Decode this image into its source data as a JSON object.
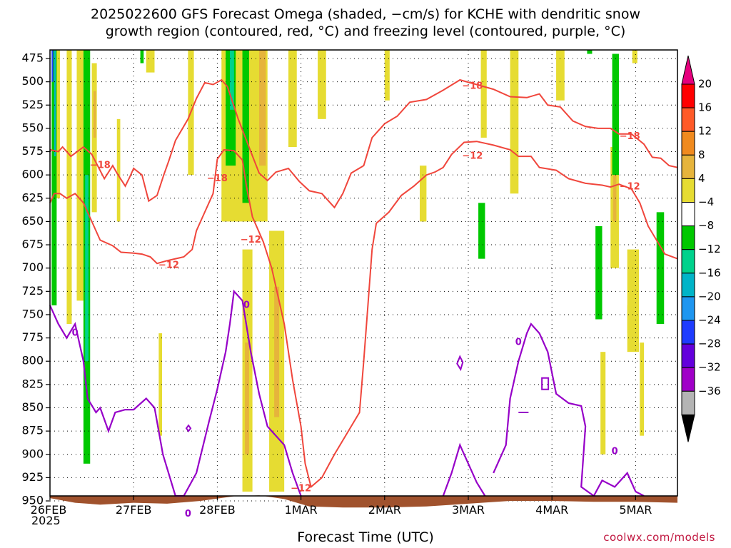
{
  "title": {
    "line1": "2025022600 GFS Forecast Omega (shaded, −cm/s) for KCHE with dendritic snow",
    "line2": "growth region (contoured, red, °C) and freezing level (contoured, purple, °C)"
  },
  "footer": {
    "xlabel": "Forecast Time (UTC)",
    "credit": "coolwx.com/models",
    "year": "2025"
  },
  "chart_data": {
    "type": "heatmap",
    "x_ticks": [
      {
        "date": "2025-02-26",
        "label": "26FEB"
      },
      {
        "date": "2025-02-27",
        "label": "27FEB"
      },
      {
        "date": "2025-02-28",
        "label": "28FEB"
      },
      {
        "date": "2025-03-01",
        "label": "1MAR"
      },
      {
        "date": "2025-03-02",
        "label": "2MAR"
      },
      {
        "date": "2025-03-03",
        "label": "3MAR"
      },
      {
        "date": "2025-03-04",
        "label": "4MAR"
      },
      {
        "date": "2025-03-05",
        "label": "5MAR"
      }
    ],
    "x_range_days": [
      0,
      7.5
    ],
    "y_ticks_hpa": [
      475,
      500,
      525,
      550,
      575,
      600,
      625,
      650,
      675,
      700,
      725,
      750,
      775,
      800,
      825,
      850,
      875,
      900,
      925,
      950
    ],
    "y_range_hpa": [
      455,
      970
    ],
    "grid": true,
    "colorbar": {
      "labels": [
        "20",
        "16",
        "12",
        "8",
        "4",
        "−4",
        "−8",
        "−12",
        "−16",
        "−20",
        "−24",
        "−28",
        "−32",
        "−36"
      ],
      "colors": [
        "#ff0000",
        "#ff5a28",
        "#f08a1e",
        "#e6b43c",
        "#e6dc32",
        "#ffffff",
        "#00c800",
        "#00d28c",
        "#00b4c8",
        "#1e96f0",
        "#1e3cff",
        "#6400dc",
        "#a000c8",
        "#b4b4b4"
      ],
      "top_arrow_color": "#e6007e",
      "bottom_arrow_color": "#000000"
    },
    "contour_labels_red": [
      {
        "text": "−18",
        "day": 0.6,
        "hpa": 590
      },
      {
        "text": "−18",
        "day": 2.0,
        "hpa": 604
      },
      {
        "text": "−18",
        "day": 5.05,
        "hpa": 505
      },
      {
        "text": "−18",
        "day": 6.93,
        "hpa": 559
      },
      {
        "text": "−12",
        "day": 1.42,
        "hpa": 697
      },
      {
        "text": "−12",
        "day": 2.4,
        "hpa": 670
      },
      {
        "text": "−12",
        "day": 3.0,
        "hpa": 937
      },
      {
        "text": "−12",
        "day": 5.05,
        "hpa": 580
      },
      {
        "text": "−12",
        "day": 6.93,
        "hpa": 613
      }
    ],
    "contour_labels_purple": [
      {
        "text": "0",
        "day": 0.3,
        "hpa": 770
      },
      {
        "text": "0",
        "day": 1.65,
        "hpa": 964
      },
      {
        "text": "0",
        "day": 2.35,
        "hpa": 740
      },
      {
        "text": "0",
        "day": 5.6,
        "hpa": 780
      },
      {
        "text": "0",
        "day": 6.75,
        "hpa": 897
      }
    ],
    "dgz_top_c_minus18": [
      [
        0,
        573
      ],
      [
        0.1,
        575
      ],
      [
        0.15,
        570
      ],
      [
        0.25,
        580
      ],
      [
        0.4,
        570
      ],
      [
        0.5,
        578
      ],
      [
        0.65,
        604
      ],
      [
        0.75,
        590
      ],
      [
        0.8,
        598
      ],
      [
        0.9,
        612
      ],
      [
        0.95,
        603
      ],
      [
        1.0,
        593
      ],
      [
        1.1,
        600
      ],
      [
        1.18,
        628
      ],
      [
        1.28,
        622
      ],
      [
        1.36,
        600
      ],
      [
        1.42,
        585
      ],
      [
        1.5,
        563
      ],
      [
        1.65,
        540
      ],
      [
        1.75,
        518
      ],
      [
        1.85,
        501
      ],
      [
        1.95,
        503
      ],
      [
        2.05,
        498
      ],
      [
        2.12,
        505
      ],
      [
        2.25,
        540
      ],
      [
        2.4,
        575
      ],
      [
        2.5,
        598
      ],
      [
        2.6,
        606
      ],
      [
        2.7,
        597
      ],
      [
        2.85,
        593
      ],
      [
        2.98,
        607
      ],
      [
        3.1,
        617
      ],
      [
        3.25,
        620
      ],
      [
        3.4,
        635
      ],
      [
        3.5,
        620
      ],
      [
        3.6,
        598
      ],
      [
        3.75,
        590
      ],
      [
        3.85,
        560
      ],
      [
        4.0,
        545
      ],
      [
        4.15,
        537
      ],
      [
        4.3,
        522
      ],
      [
        4.5,
        519
      ],
      [
        4.7,
        509
      ],
      [
        4.9,
        498
      ],
      [
        5.1,
        503
      ],
      [
        5.3,
        508
      ],
      [
        5.5,
        516
      ],
      [
        5.7,
        517
      ],
      [
        5.85,
        513
      ],
      [
        5.95,
        525
      ],
      [
        6.1,
        527
      ],
      [
        6.25,
        542
      ],
      [
        6.4,
        548
      ],
      [
        6.55,
        550
      ],
      [
        6.7,
        550
      ],
      [
        6.8,
        556
      ],
      [
        6.95,
        556
      ],
      [
        7.1,
        567
      ],
      [
        7.2,
        581
      ],
      [
        7.3,
        582
      ],
      [
        7.4,
        590
      ],
      [
        7.5,
        592
      ]
    ],
    "dgz_bottom_c_minus12": [
      [
        0,
        630
      ],
      [
        0.05,
        620
      ],
      [
        0.12,
        620
      ],
      [
        0.2,
        625
      ],
      [
        0.3,
        620
      ],
      [
        0.4,
        630
      ],
      [
        0.5,
        650
      ],
      [
        0.6,
        670
      ],
      [
        0.75,
        676
      ],
      [
        0.85,
        683
      ],
      [
        1.0,
        684
      ],
      [
        1.1,
        685
      ],
      [
        1.2,
        688
      ],
      [
        1.28,
        695
      ],
      [
        1.4,
        692
      ],
      [
        1.5,
        690
      ],
      [
        1.6,
        688
      ],
      [
        1.7,
        680
      ],
      [
        1.75,
        660
      ],
      [
        1.85,
        640
      ],
      [
        1.95,
        620
      ],
      [
        2.0,
        583
      ],
      [
        2.08,
        573
      ],
      [
        2.2,
        574
      ],
      [
        2.3,
        584
      ],
      [
        2.35,
        613
      ],
      [
        2.42,
        645
      ],
      [
        2.55,
        672
      ],
      [
        2.65,
        700
      ],
      [
        2.8,
        760
      ],
      [
        2.9,
        820
      ],
      [
        3.0,
        870
      ],
      [
        3.05,
        910
      ],
      [
        3.12,
        935
      ],
      [
        3.25,
        925
      ],
      [
        3.4,
        900
      ],
      [
        3.6,
        870
      ],
      [
        3.7,
        855
      ],
      [
        3.75,
        800
      ],
      [
        3.8,
        740
      ],
      [
        3.85,
        680
      ],
      [
        3.9,
        652
      ],
      [
        4.05,
        640
      ],
      [
        4.2,
        622
      ],
      [
        4.35,
        612
      ],
      [
        4.5,
        600
      ],
      [
        4.6,
        597
      ],
      [
        4.7,
        592
      ],
      [
        4.8,
        578
      ],
      [
        4.95,
        565
      ],
      [
        5.1,
        564
      ],
      [
        5.3,
        568
      ],
      [
        5.5,
        573
      ],
      [
        5.6,
        580
      ],
      [
        5.75,
        580
      ],
      [
        5.85,
        592
      ],
      [
        6.05,
        595
      ],
      [
        6.2,
        604
      ],
      [
        6.4,
        609
      ],
      [
        6.6,
        611
      ],
      [
        6.7,
        613
      ],
      [
        6.8,
        610
      ],
      [
        6.95,
        615
      ],
      [
        7.05,
        630
      ],
      [
        7.15,
        655
      ],
      [
        7.25,
        670
      ],
      [
        7.35,
        685
      ],
      [
        7.5,
        690
      ]
    ],
    "freezing_level_0c": [
      [
        [
          0,
          740
        ],
        [
          0.1,
          760
        ],
        [
          0.2,
          775
        ],
        [
          0.3,
          760
        ],
        [
          0.4,
          800
        ],
        [
          0.45,
          840
        ],
        [
          0.55,
          855
        ],
        [
          0.6,
          850
        ],
        [
          0.7,
          875
        ],
        [
          0.78,
          855
        ],
        [
          0.9,
          852
        ],
        [
          1.0,
          852
        ],
        [
          1.15,
          840
        ],
        [
          1.25,
          850
        ],
        [
          1.35,
          900
        ],
        [
          1.5,
          950
        ],
        [
          1.6,
          960
        ],
        [
          1.75,
          920
        ],
        [
          1.9,
          865
        ],
        [
          2.0,
          830
        ],
        [
          2.1,
          790
        ],
        [
          2.15,
          760
        ],
        [
          2.2,
          725
        ],
        [
          2.3,
          735
        ],
        [
          2.4,
          790
        ],
        [
          2.5,
          835
        ],
        [
          2.6,
          870
        ],
        [
          2.8,
          890
        ],
        [
          2.9,
          920
        ],
        [
          3.0,
          960
        ]
      ],
      [
        [
          4.7,
          960
        ],
        [
          4.8,
          920
        ],
        [
          4.9,
          890
        ],
        [
          5.0,
          910
        ],
        [
          5.1,
          930
        ],
        [
          5.2,
          955
        ]
      ],
      [
        [
          5.3,
          920
        ],
        [
          5.45,
          890
        ],
        [
          5.5,
          840
        ],
        [
          5.6,
          800
        ],
        [
          5.7,
          770
        ],
        [
          5.75,
          760
        ],
        [
          5.85,
          770
        ],
        [
          5.95,
          790
        ],
        [
          6.05,
          835
        ],
        [
          6.2,
          845
        ],
        [
          6.35,
          848
        ],
        [
          6.4,
          870
        ],
        [
          6.35,
          935
        ],
        [
          6.5,
          948
        ],
        [
          6.6,
          928
        ],
        [
          6.75,
          935
        ],
        [
          6.9,
          920
        ],
        [
          7.0,
          940
        ],
        [
          7.1,
          960
        ]
      ]
    ],
    "omega_shading": [
      {
        "band": "4",
        "day0": 0.05,
        "day1": 0.12,
        "hpa0": 460,
        "hpa1": 625
      },
      {
        "band": "4",
        "day0": 0.2,
        "day1": 0.26,
        "hpa0": 460,
        "hpa1": 760
      },
      {
        "band": "4",
        "day0": 0.32,
        "day1": 0.4,
        "hpa0": 460,
        "hpa1": 735
      },
      {
        "band": "4",
        "day0": 0.5,
        "day1": 0.56,
        "hpa0": 480,
        "hpa1": 640
      },
      {
        "band": "8",
        "day0": 0.52,
        "day1": 0.55,
        "hpa0": 510,
        "hpa1": 560
      },
      {
        "band": "-8",
        "day0": 0.02,
        "day1": 0.08,
        "hpa0": 460,
        "hpa1": 740
      },
      {
        "band": "-16",
        "day0": 0.05,
        "day1": 0.07,
        "hpa0": 465,
        "hpa1": 580
      },
      {
        "band": "-24",
        "day0": 0.02,
        "day1": 0.04,
        "hpa0": 460,
        "hpa1": 500
      },
      {
        "band": "-8",
        "day0": 0.4,
        "day1": 0.48,
        "hpa0": 460,
        "hpa1": 910
      },
      {
        "band": "-12",
        "day0": 0.42,
        "day1": 0.46,
        "hpa0": 600,
        "hpa1": 800
      },
      {
        "band": "4",
        "day0": 0.8,
        "day1": 0.84,
        "hpa0": 540,
        "hpa1": 650
      },
      {
        "band": "-8",
        "day0": 1.08,
        "day1": 1.12,
        "hpa0": 460,
        "hpa1": 480
      },
      {
        "band": "4",
        "day0": 1.15,
        "day1": 1.25,
        "hpa0": 460,
        "hpa1": 490
      },
      {
        "band": "4",
        "day0": 1.65,
        "day1": 1.72,
        "hpa0": 460,
        "hpa1": 600
      },
      {
        "band": "4",
        "day0": 1.3,
        "day1": 1.34,
        "hpa0": 770,
        "hpa1": 880
      },
      {
        "band": "4",
        "day0": 2.05,
        "day1": 2.6,
        "hpa0": 460,
        "hpa1": 650
      },
      {
        "band": "-8",
        "day0": 2.1,
        "day1": 2.22,
        "hpa0": 460,
        "hpa1": 590
      },
      {
        "band": "-12",
        "day0": 2.15,
        "day1": 2.2,
        "hpa0": 460,
        "hpa1": 530
      },
      {
        "band": "-8",
        "day0": 2.3,
        "day1": 2.38,
        "hpa0": 460,
        "hpa1": 630
      },
      {
        "band": "8",
        "day0": 2.5,
        "day1": 2.58,
        "hpa0": 460,
        "hpa1": 590
      },
      {
        "band": "4",
        "day0": 2.3,
        "day1": 2.42,
        "hpa0": 680,
        "hpa1": 940
      },
      {
        "band": "8",
        "day0": 2.33,
        "day1": 2.38,
        "hpa0": 780,
        "hpa1": 900
      },
      {
        "band": "4",
        "day0": 2.62,
        "day1": 2.8,
        "hpa0": 660,
        "hpa1": 940
      },
      {
        "band": "8",
        "day0": 2.68,
        "day1": 2.74,
        "hpa0": 720,
        "hpa1": 860
      },
      {
        "band": "4",
        "day0": 2.85,
        "day1": 2.95,
        "hpa0": 460,
        "hpa1": 570
      },
      {
        "band": "4",
        "day0": 3.2,
        "day1": 3.3,
        "hpa0": 460,
        "hpa1": 540
      },
      {
        "band": "4",
        "day0": 4.0,
        "day1": 4.06,
        "hpa0": 460,
        "hpa1": 520
      },
      {
        "band": "4",
        "day0": 4.42,
        "day1": 4.5,
        "hpa0": 590,
        "hpa1": 650
      },
      {
        "band": "4",
        "day0": 5.15,
        "day1": 5.22,
        "hpa0": 460,
        "hpa1": 560
      },
      {
        "band": "-8",
        "day0": 5.12,
        "day1": 5.2,
        "hpa0": 630,
        "hpa1": 690
      },
      {
        "band": "4",
        "day0": 5.5,
        "day1": 5.6,
        "hpa0": 460,
        "hpa1": 620
      },
      {
        "band": "4",
        "day0": 6.05,
        "day1": 6.15,
        "hpa0": 460,
        "hpa1": 520
      },
      {
        "band": "-8",
        "day0": 6.52,
        "day1": 6.6,
        "hpa0": 655,
        "hpa1": 755
      },
      {
        "band": "4",
        "day0": 6.58,
        "day1": 6.64,
        "hpa0": 790,
        "hpa1": 900
      },
      {
        "band": "4",
        "day0": 6.7,
        "day1": 6.8,
        "hpa0": 570,
        "hpa1": 700
      },
      {
        "band": "8",
        "day0": 6.73,
        "day1": 6.77,
        "hpa0": 600,
        "hpa1": 650
      },
      {
        "band": "-8",
        "day0": 6.42,
        "day1": 6.48,
        "hpa0": 460,
        "hpa1": 470
      },
      {
        "band": "-8",
        "day0": 6.72,
        "day1": 6.8,
        "hpa0": 470,
        "hpa1": 600
      },
      {
        "band": "4",
        "day0": 6.9,
        "day1": 7.0,
        "hpa0": 740,
        "hpa1": 770
      },
      {
        "band": "4",
        "day0": 6.9,
        "day1": 7.04,
        "hpa0": 680,
        "hpa1": 790
      },
      {
        "band": "4",
        "day0": 7.05,
        "day1": 7.1,
        "hpa0": 780,
        "hpa1": 880
      },
      {
        "band": "4",
        "day0": 6.96,
        "day1": 7.02,
        "hpa0": 460,
        "hpa1": 480
      },
      {
        "band": "-8",
        "day0": 7.25,
        "day1": 7.34,
        "hpa0": 640,
        "hpa1": 760
      }
    ],
    "surface_terrain_hpa": [
      [
        0,
        947
      ],
      [
        0.3,
        952
      ],
      [
        0.6,
        954
      ],
      [
        1.0,
        952
      ],
      [
        1.4,
        953
      ],
      [
        1.8,
        950
      ],
      [
        2.2,
        945
      ],
      [
        2.5,
        944
      ],
      [
        2.8,
        948
      ],
      [
        3.1,
        956
      ],
      [
        3.5,
        957
      ],
      [
        4.0,
        957
      ],
      [
        4.5,
        956
      ],
      [
        5.0,
        953
      ],
      [
        5.5,
        950
      ],
      [
        6.0,
        950
      ],
      [
        6.5,
        951
      ],
      [
        7.0,
        951
      ],
      [
        7.5,
        952
      ]
    ]
  }
}
